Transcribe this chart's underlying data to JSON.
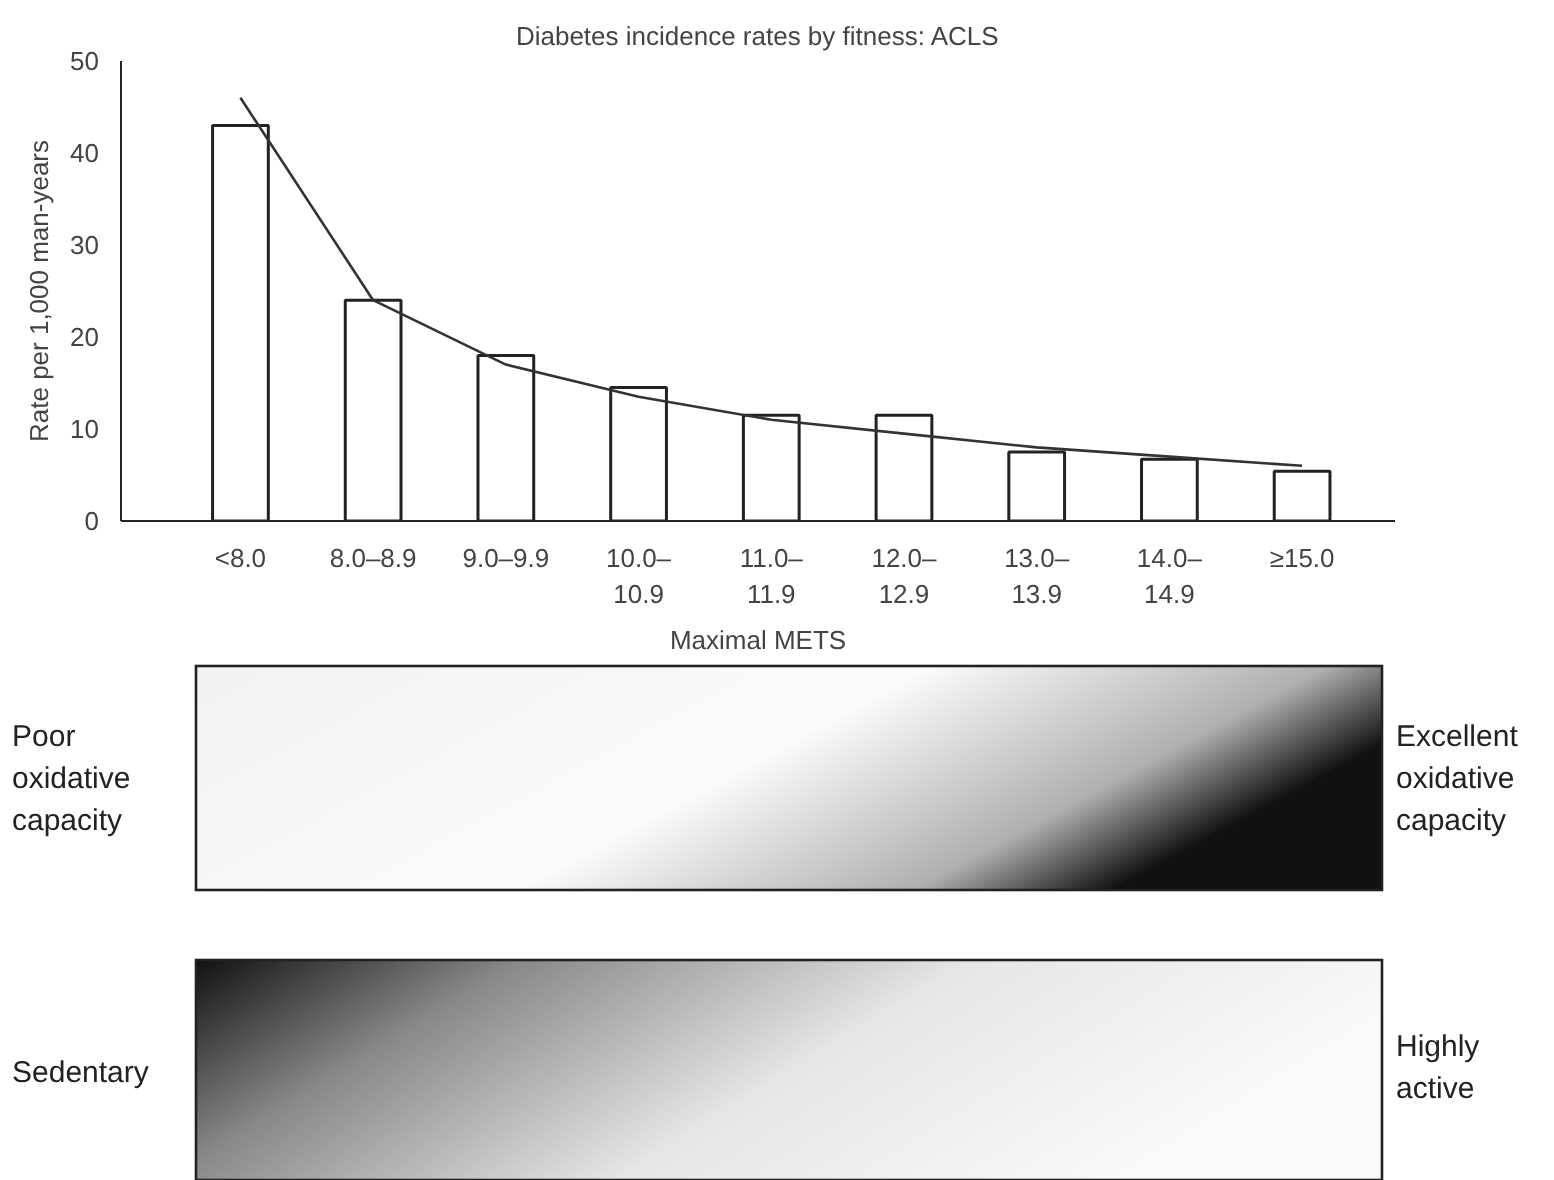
{
  "chart_data": {
    "type": "bar",
    "title": "Diabetes incidence rates by fitness: ACLS",
    "xlabel": "Maximal METS",
    "ylabel": "Rate per 1,000 man-years",
    "categories": [
      "<8.0",
      "8.0–8.9",
      "9.0–9.9",
      "10.0–\n10.9",
      "11.0–\n11.9",
      "12.0–\n12.9",
      "13.0–\n13.9",
      "14.0–\n14.9",
      "≥15.0"
    ],
    "series": [
      {
        "color": "#ffffff",
        "values": [
          43,
          24,
          18,
          14.5,
          11.5,
          11.5,
          7.5,
          6.7,
          5.4
        ]
      },
      {
        "type": "line",
        "color": "#333333",
        "values": [
          46,
          24,
          17,
          13.5,
          11,
          9.5,
          8,
          7,
          6
        ]
      }
    ],
    "ylim": [
      0,
      50
    ],
    "yticks": [
      0,
      10,
      20,
      30,
      40,
      50
    ],
    "grid": false,
    "annotations": [
      "Poor\noxidative\ncapacity",
      "Excellent\noxidative\ncapacity",
      "Sedentary",
      "Highly\nactive"
    ]
  }
}
